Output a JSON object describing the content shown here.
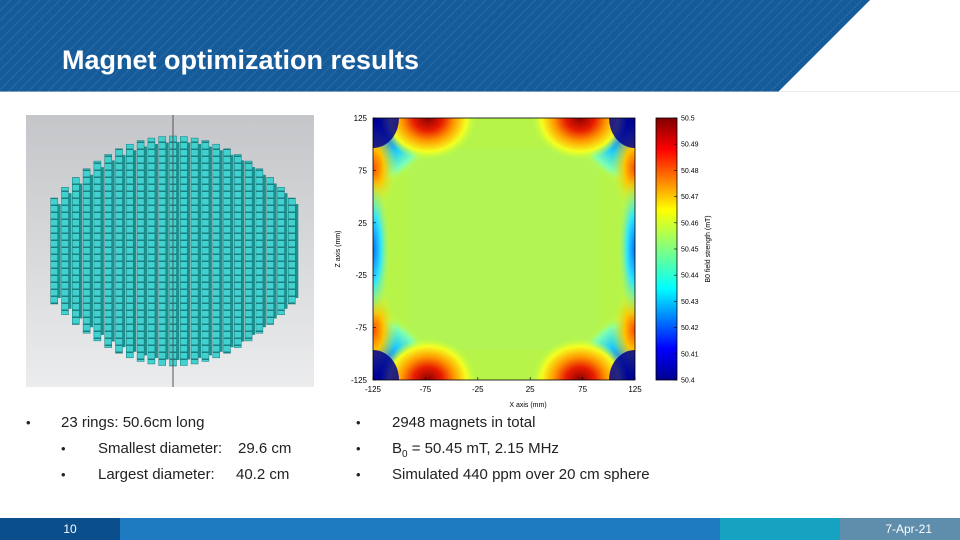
{
  "slide": {
    "title": "Magnet optimization results",
    "page_number": "10",
    "date": "7-Apr-21"
  },
  "colors": {
    "header_blue": "#165b9a",
    "header_blue_dark": "#0f4c87",
    "footer_dark": "#0b4e8c",
    "footer_mid": "#1f7bc1",
    "footer_teal": "#16a2c1",
    "footer_gray": "#5f8dac",
    "magnet_cyan": "#3fd6d4",
    "image_bg": "#cfd0d2"
  },
  "left_bullets": [
    {
      "text": "23 rings: 50.6cm long",
      "level": 1
    },
    {
      "label": "Smallest diameter:",
      "value": "29.6 cm",
      "level": 2
    },
    {
      "label": "Largest diameter:",
      "value": "40.2 cm",
      "level": 2
    }
  ],
  "right_bullets": {
    "item1": "2948 magnets in total",
    "item2_prefix": "B",
    "item2_sub": "0",
    "item2_rest": " = 50.45 mT, 2.15 MHz",
    "item3": "Simulated 440 ppm over 20 cm sphere"
  },
  "bullet_symbol": "•",
  "figure_magnet": {
    "description_icon": "magnet-array-icon"
  },
  "chart_data": {
    "type": "heatmap",
    "title": "",
    "xlabel": "X axis (mm)",
    "ylabel": "Z axis (mm)",
    "xlim": [
      -125,
      125
    ],
    "ylim": [
      -125,
      125
    ],
    "x_ticks": [
      "-125",
      "-75",
      "-25",
      "25",
      "75",
      "125"
    ],
    "y_ticks": [
      "125",
      "75",
      "25",
      "-25",
      "-75",
      "-125"
    ],
    "colorbar_label": "B0 field strength (mT)",
    "colorbar_range": [
      50.4,
      50.5
    ],
    "colorbar_ticks": [
      "50.5",
      "50.49",
      "50.48",
      "50.47",
      "50.46",
      "50.45",
      "50.44",
      "50.43",
      "50.42",
      "50.41",
      "50.4"
    ],
    "field_center_mT": 50.45
  }
}
